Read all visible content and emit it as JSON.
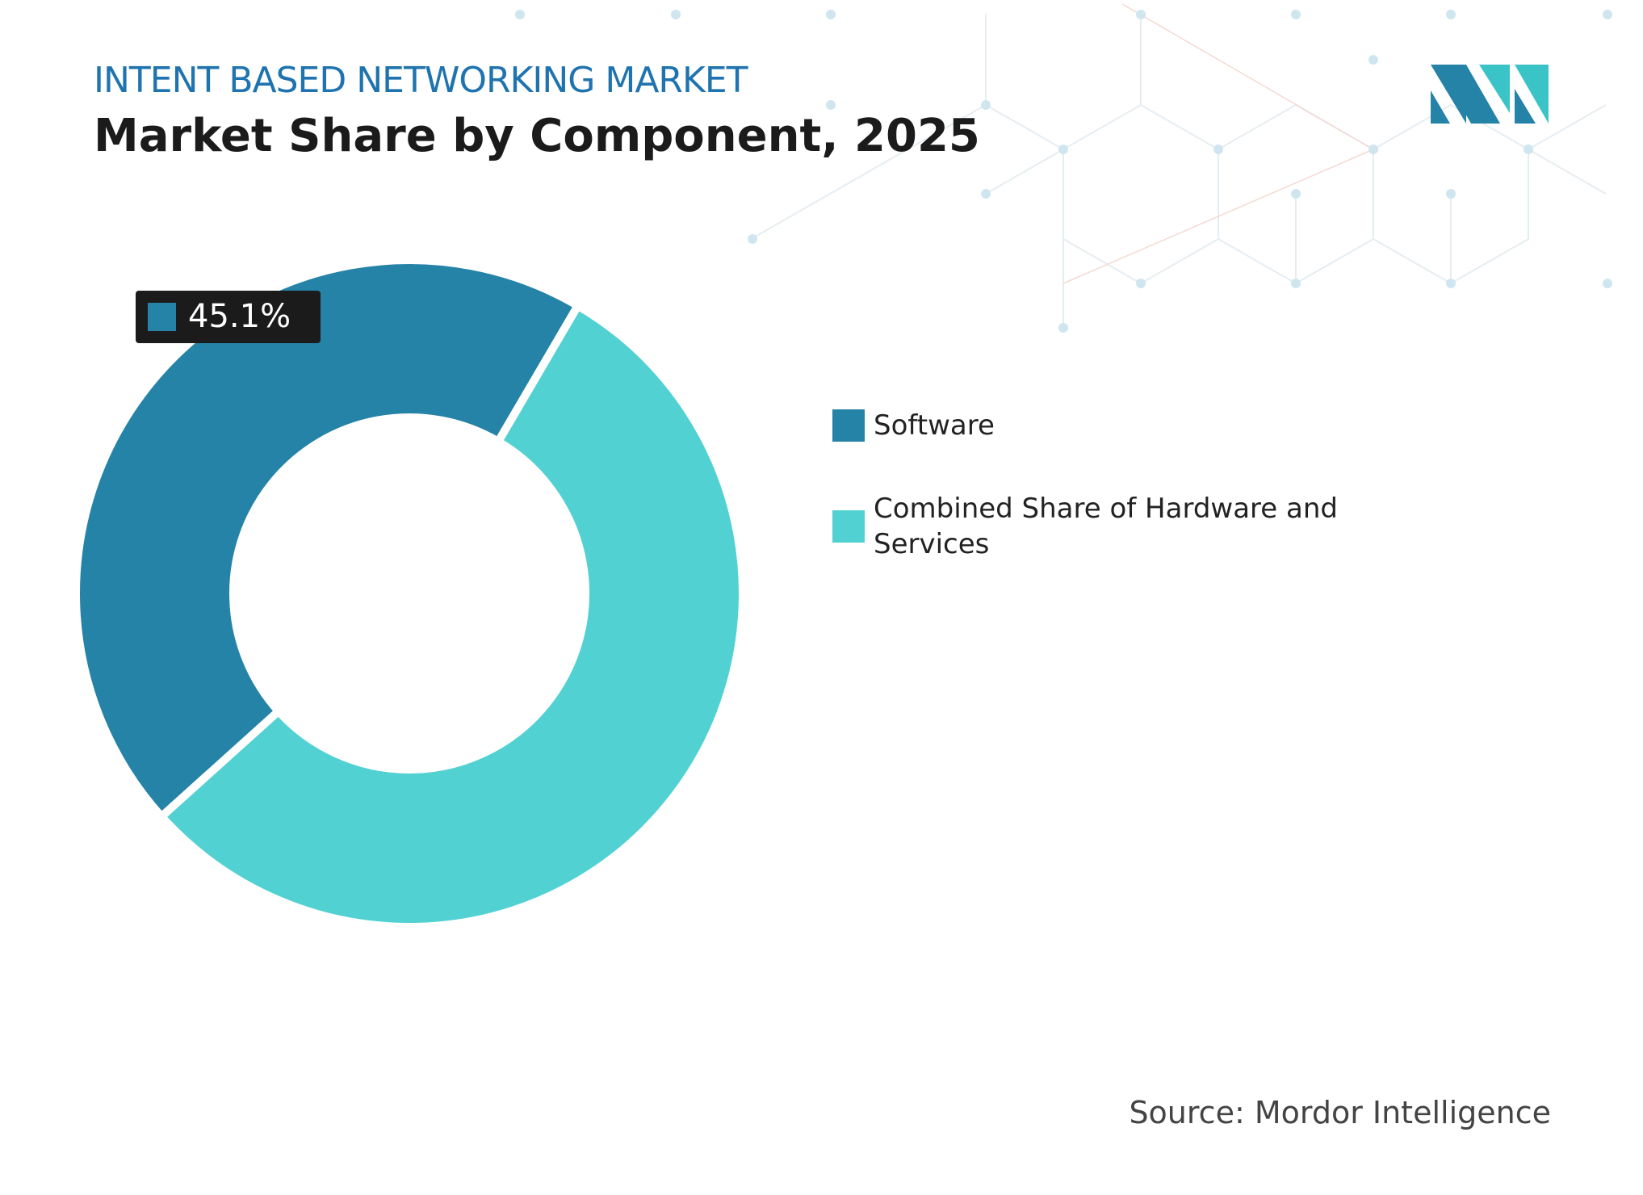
{
  "chart_data": {
    "type": "donut",
    "subtitle": "INTENT BASED NETWORKING MARKET",
    "title": "Market Share by Component, 2025",
    "categories": [
      "Software",
      "Combined Share of Hardware and Services"
    ],
    "values": [
      45.1,
      54.9
    ],
    "value_labels": [
      "45.1%",
      null
    ],
    "colors": [
      "#2683a8",
      "#52d1d3"
    ],
    "source": "Source: Mordor Intelligence"
  }
}
